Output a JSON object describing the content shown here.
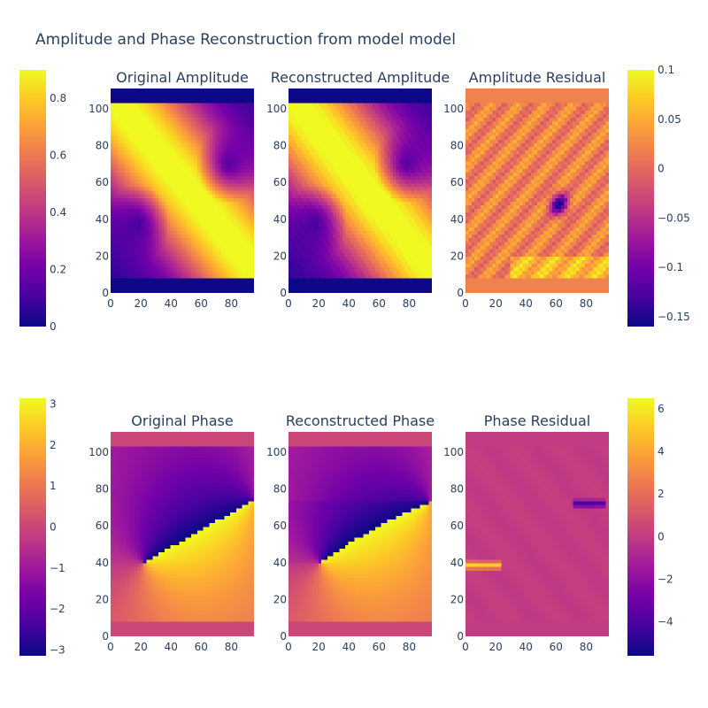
{
  "title": "Amplitude and Phase Reconstruction from model model",
  "colors": {
    "text": "#2a3f5f",
    "plasma": [
      "#0d0887",
      "#46039f",
      "#7201a8",
      "#9c179e",
      "#bd3786",
      "#d8576b",
      "#ed7953",
      "#fb9f3a",
      "#fdca26",
      "#f0f921"
    ]
  },
  "chart_data": [
    {
      "type": "heatmap",
      "title": "Original Amplitude",
      "x_ticks": [
        "0",
        "20",
        "40",
        "60",
        "80"
      ],
      "y_ticks": [
        "0",
        "20",
        "40",
        "60",
        "80",
        "100"
      ],
      "xlim": [
        0,
        95
      ],
      "ylim": [
        0,
        111
      ],
      "field": "amp_orig",
      "zrange": [
        0,
        0.9
      ]
    },
    {
      "type": "heatmap",
      "title": "Reconstructed Amplitude",
      "x_ticks": [
        "0",
        "20",
        "40",
        "60",
        "80"
      ],
      "y_ticks": [
        "0",
        "20",
        "40",
        "60",
        "80",
        "100"
      ],
      "xlim": [
        0,
        95
      ],
      "ylim": [
        0,
        111
      ],
      "field": "amp_rec",
      "zrange": [
        0,
        0.9
      ]
    },
    {
      "type": "heatmap",
      "title": "Amplitude Residual",
      "x_ticks": [
        "0",
        "20",
        "40",
        "60",
        "80"
      ],
      "y_ticks": [
        "0",
        "20",
        "40",
        "60",
        "80",
        "100"
      ],
      "xlim": [
        0,
        95
      ],
      "ylim": [
        0,
        111
      ],
      "field": "amp_res",
      "zrange": [
        -0.16,
        0.1
      ]
    },
    {
      "type": "heatmap",
      "title": "Original Phase",
      "x_ticks": [
        "0",
        "20",
        "40",
        "60",
        "80"
      ],
      "y_ticks": [
        "0",
        "20",
        "40",
        "60",
        "80",
        "100"
      ],
      "xlim": [
        0,
        95
      ],
      "ylim": [
        0,
        111
      ],
      "field": "ph_orig",
      "zrange": [
        -3.14,
        3.14
      ]
    },
    {
      "type": "heatmap",
      "title": "Reconstructed Phase",
      "x_ticks": [
        "0",
        "20",
        "40",
        "60",
        "80"
      ],
      "y_ticks": [
        "0",
        "20",
        "40",
        "60",
        "80",
        "100"
      ],
      "xlim": [
        0,
        95
      ],
      "ylim": [
        0,
        111
      ],
      "field": "ph_rec",
      "zrange": [
        -3.14,
        3.14
      ]
    },
    {
      "type": "heatmap",
      "title": "Phase Residual",
      "x_ticks": [
        "0",
        "20",
        "40",
        "60",
        "80"
      ],
      "y_ticks": [
        "0",
        "20",
        "40",
        "60",
        "80",
        "100"
      ],
      "xlim": [
        0,
        95
      ],
      "ylim": [
        0,
        111
      ],
      "field": "ph_res",
      "zrange": [
        -5.6,
        6.5
      ]
    }
  ],
  "colorbars": {
    "amplitude": {
      "range": [
        0,
        0.9
      ],
      "ticks": [
        {
          "v": 0,
          "label": "0"
        },
        {
          "v": 0.2,
          "label": "0.2"
        },
        {
          "v": 0.4,
          "label": "0.4"
        },
        {
          "v": 0.6,
          "label": "0.6"
        },
        {
          "v": 0.8,
          "label": "0.8"
        }
      ]
    },
    "amplitude_residual": {
      "range": [
        -0.16,
        0.1
      ],
      "ticks": [
        {
          "v": 0.1,
          "label": "0.1"
        },
        {
          "v": 0.05,
          "label": "0.05"
        },
        {
          "v": 0,
          "label": "0"
        },
        {
          "v": -0.05,
          "label": "−0.05"
        },
        {
          "v": -0.1,
          "label": "−0.1"
        },
        {
          "v": -0.15,
          "label": "−0.15"
        }
      ]
    },
    "phase": {
      "range": [
        -3.14,
        3.14
      ],
      "ticks": [
        {
          "v": 3,
          "label": "3"
        },
        {
          "v": 2,
          "label": "2"
        },
        {
          "v": 1,
          "label": "1"
        },
        {
          "v": 0,
          "label": "0"
        },
        {
          "v": -1,
          "label": "−1"
        },
        {
          "v": -2,
          "label": "−2"
        },
        {
          "v": -3,
          "label": "−3"
        }
      ]
    },
    "phase_residual": {
      "range": [
        -5.6,
        6.5
      ],
      "ticks": [
        {
          "v": 6,
          "label": "6"
        },
        {
          "v": 4,
          "label": "4"
        },
        {
          "v": 2,
          "label": "2"
        },
        {
          "v": 0,
          "label": "0"
        },
        {
          "v": -2,
          "label": "−2"
        },
        {
          "v": -4,
          "label": "−4"
        }
      ]
    }
  }
}
